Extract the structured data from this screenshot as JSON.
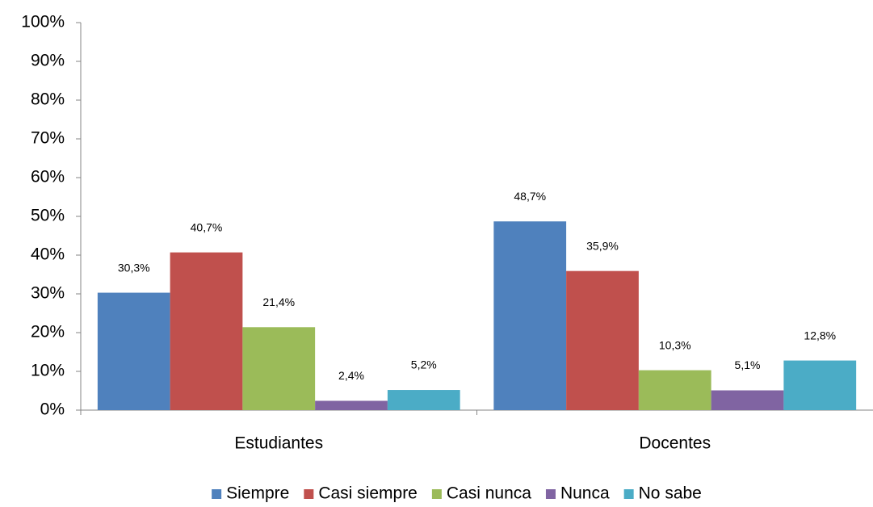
{
  "chart_data": {
    "type": "bar",
    "categories": [
      "Estudiantes",
      "Docentes"
    ],
    "series": [
      {
        "name": "Siempre",
        "color": "#4f81bd",
        "values": [
          30.3,
          48.7
        ],
        "value_labels": [
          "30,3%",
          "48,7%"
        ]
      },
      {
        "name": "Casi siempre",
        "color": "#c0504d",
        "values": [
          40.7,
          35.9
        ],
        "value_labels": [
          "40,7%",
          "35,9%"
        ]
      },
      {
        "name": "Casi nunca",
        "color": "#9bbb59",
        "values": [
          21.4,
          10.3
        ],
        "value_labels": [
          "21,4%",
          "10,3%"
        ]
      },
      {
        "name": "Nunca",
        "color": "#8064a2",
        "values": [
          2.4,
          5.1
        ],
        "value_labels": [
          "2,4%",
          "5,1%"
        ]
      },
      {
        "name": "No sabe",
        "color": "#4bacc6",
        "values": [
          5.2,
          12.8
        ],
        "value_labels": [
          "5,2%",
          "12,8%"
        ]
      }
    ],
    "ylim": [
      0,
      100
    ],
    "yticks": [
      {
        "value": 0,
        "label": "0%"
      },
      {
        "value": 10,
        "label": "10%"
      },
      {
        "value": 20,
        "label": "20%"
      },
      {
        "value": 30,
        "label": "30%"
      },
      {
        "value": 40,
        "label": "40%"
      },
      {
        "value": 50,
        "label": "50%"
      },
      {
        "value": 60,
        "label": "60%"
      },
      {
        "value": 70,
        "label": "70%"
      },
      {
        "value": 80,
        "label": "80%"
      },
      {
        "value": 90,
        "label": "90%"
      },
      {
        "value": 100,
        "label": "100%"
      }
    ],
    "grid": false,
    "legend": "bottom"
  }
}
